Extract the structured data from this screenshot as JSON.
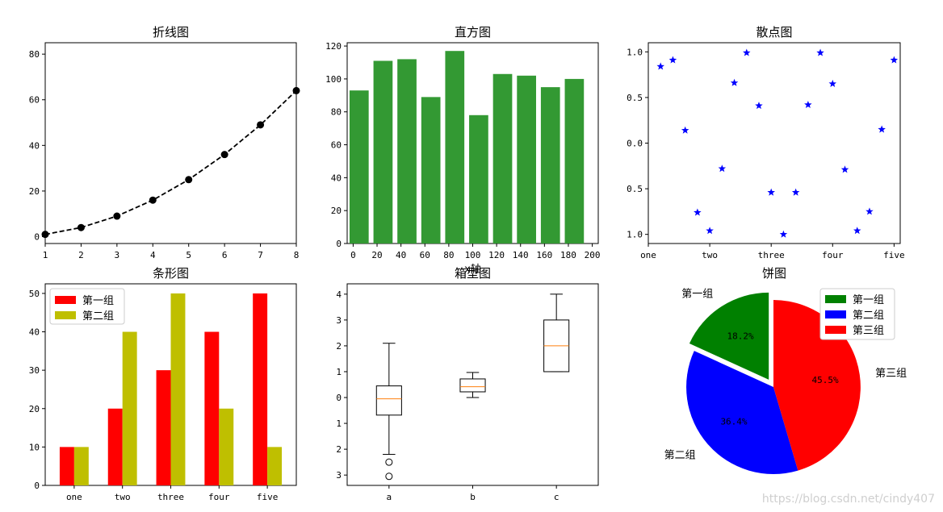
{
  "watermark": "https://blog.csdn.net/cindy407",
  "chart_data": [
    {
      "id": "line",
      "type": "line",
      "title": "折线图",
      "x": [
        1,
        2,
        3,
        4,
        5,
        6,
        7,
        8
      ],
      "series": [
        {
          "values": [
            1,
            4,
            9,
            16,
            25,
            36,
            49,
            64
          ],
          "color": "#000000",
          "dash": "dashed",
          "marker": "circle"
        }
      ],
      "xlim": [
        1,
        8
      ],
      "ylim": [
        -3,
        85
      ],
      "xticks": [
        1,
        2,
        3,
        4,
        5,
        6,
        7,
        8
      ],
      "yticks": [
        0,
        20,
        40,
        60,
        80
      ]
    },
    {
      "id": "bars",
      "type": "bar",
      "title": "直方图",
      "x": [
        5,
        25,
        45,
        65,
        85,
        105,
        125,
        145,
        165,
        185
      ],
      "values": [
        93,
        111,
        112,
        89,
        117,
        78,
        103,
        102,
        95,
        100
      ],
      "bar_width": 16,
      "color": "#339933",
      "xlim": [
        -5,
        205
      ],
      "ylim": [
        0,
        122
      ],
      "xticks": [
        0,
        20,
        40,
        60,
        80,
        100,
        120,
        140,
        160,
        180,
        200
      ],
      "yticks": [
        0,
        20,
        40,
        60,
        80,
        100,
        120
      ],
      "xlabel": "x轴"
    },
    {
      "id": "scatter",
      "type": "scatter",
      "title": "散点图",
      "x": [
        0.2,
        0.4,
        0.6,
        0.8,
        1.0,
        1.2,
        1.4,
        1.6,
        1.8,
        2.0,
        2.2,
        2.4,
        2.6,
        2.8,
        3.0,
        3.2,
        3.4,
        3.6,
        3.8,
        4.0
      ],
      "values": [
        0.84,
        0.91,
        0.14,
        -0.76,
        -0.96,
        -0.28,
        0.66,
        0.99,
        0.41,
        -0.54,
        -1.0,
        -0.54,
        0.42,
        0.99,
        0.65,
        -0.29,
        -0.96,
        -0.75,
        0.15,
        0.91
      ],
      "color": "#0000ff",
      "marker": "star",
      "xlim": [
        0,
        4.1
      ],
      "ylim": [
        -1.1,
        1.1
      ],
      "xticks": [
        0,
        1,
        2,
        3,
        4
      ],
      "xticklabels": [
        "one",
        "two",
        "three",
        "four",
        "five"
      ],
      "yticks": [
        1.0,
        0.5,
        0.0,
        -0.5,
        -1.0
      ],
      "yticklabels": [
        "1.0",
        "0.5",
        "0.0",
        "0.5",
        "1.0"
      ]
    },
    {
      "id": "grouped",
      "type": "bar",
      "title": "条形图",
      "categories": [
        "one",
        "two",
        "three",
        "four",
        "five"
      ],
      "series": [
        {
          "name": "第一组",
          "values": [
            10,
            20,
            30,
            40,
            50
          ],
          "color": "#ff0000"
        },
        {
          "name": "第二组",
          "values": [
            10,
            40,
            50,
            20,
            10
          ],
          "color": "#bfbf00"
        }
      ],
      "ylim": [
        0,
        52.5
      ],
      "yticks": [
        0,
        10,
        20,
        30,
        40,
        50
      ],
      "legend": "top-left"
    },
    {
      "id": "box",
      "type": "box",
      "title": "箱型图",
      "categories": [
        "a",
        "b",
        "c"
      ],
      "boxes": [
        {
          "whislo": -2.2,
          "q1": -0.68,
          "med": -0.05,
          "q3": 0.45,
          "whishi": 2.1,
          "fliers": [
            -2.5,
            -3.05
          ]
        },
        {
          "whislo": 0.0,
          "q1": 0.22,
          "med": 0.42,
          "q3": 0.72,
          "whishi": 0.97,
          "fliers": []
        },
        {
          "whislo": 1.0,
          "q1": 1.0,
          "med": 2.0,
          "q3": 3.0,
          "whishi": 4.0,
          "fliers": []
        }
      ],
      "ylim": [
        -3.4,
        4.4
      ],
      "yticks": [
        4,
        3,
        2,
        1,
        0,
        -1,
        -2,
        -3
      ],
      "yticklabels": [
        "4",
        "3",
        "2",
        "1",
        "0",
        "1",
        "2",
        "3"
      ],
      "box_color": "#000000",
      "median_color": "#ff7f0e"
    },
    {
      "id": "pie",
      "type": "pie",
      "title": "饼图",
      "labels": [
        "第一组",
        "第二组",
        "第三组"
      ],
      "values": [
        18.2,
        36.4,
        45.5
      ],
      "pct_labels": [
        "18.2%",
        "36.4%",
        "45.5%"
      ],
      "colors": [
        "#008000",
        "#0000ff",
        "#ff0000"
      ],
      "explode": [
        0.1,
        0,
        0
      ],
      "start_angle": 90,
      "legend": "top-right"
    }
  ]
}
